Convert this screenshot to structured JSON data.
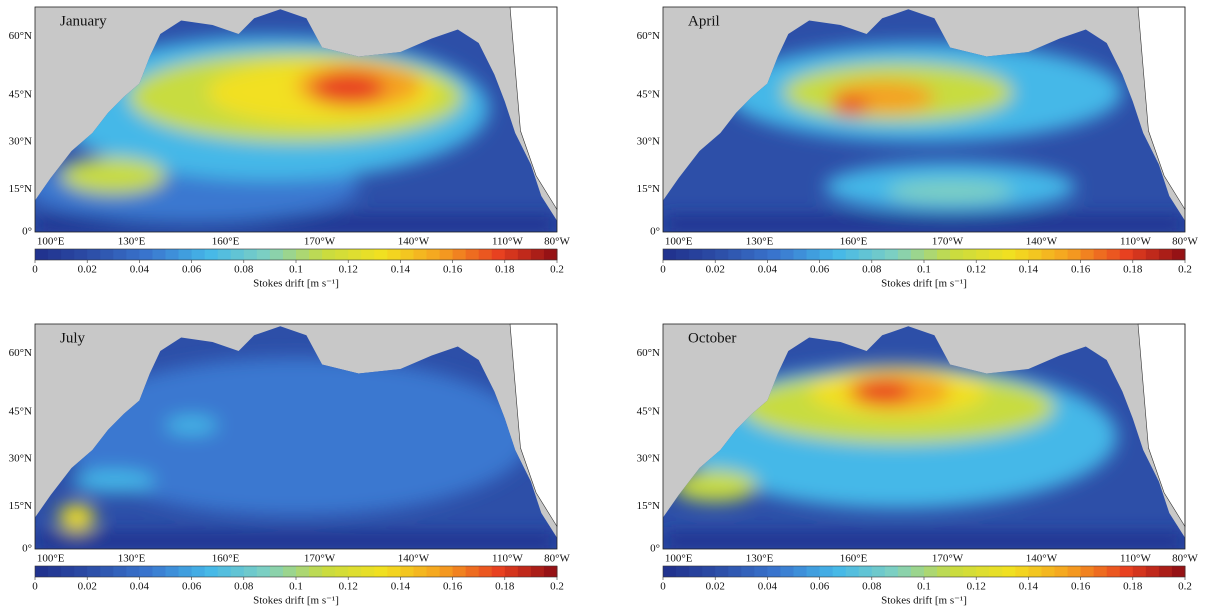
{
  "panels": [
    {
      "title": "January"
    },
    {
      "title": "April"
    },
    {
      "title": "July"
    },
    {
      "title": "October"
    }
  ],
  "lat_labels": [
    "0°",
    "15°N",
    "30°N",
    "45°N",
    "60°N"
  ],
  "lon_labels": [
    "100°E",
    "130°E",
    "160°E",
    "170°W",
    "140°W",
    "110°W",
    "80°W"
  ],
  "colorbar": {
    "label": "Stokes drift [m s⁻¹]",
    "lim": [
      0,
      0.2
    ],
    "ticks": [
      0,
      0.02,
      0.04,
      0.06,
      0.08,
      0.1,
      0.12,
      0.14,
      0.16,
      0.18,
      0.2
    ],
    "colormap": [
      "#1f2f8c",
      "#2d4fa8",
      "#3a78d0",
      "#45b8e8",
      "#7fd0c0",
      "#c8dc40",
      "#f2e020",
      "#f5a020",
      "#e84020",
      "#8c0c14"
    ]
  }
}
